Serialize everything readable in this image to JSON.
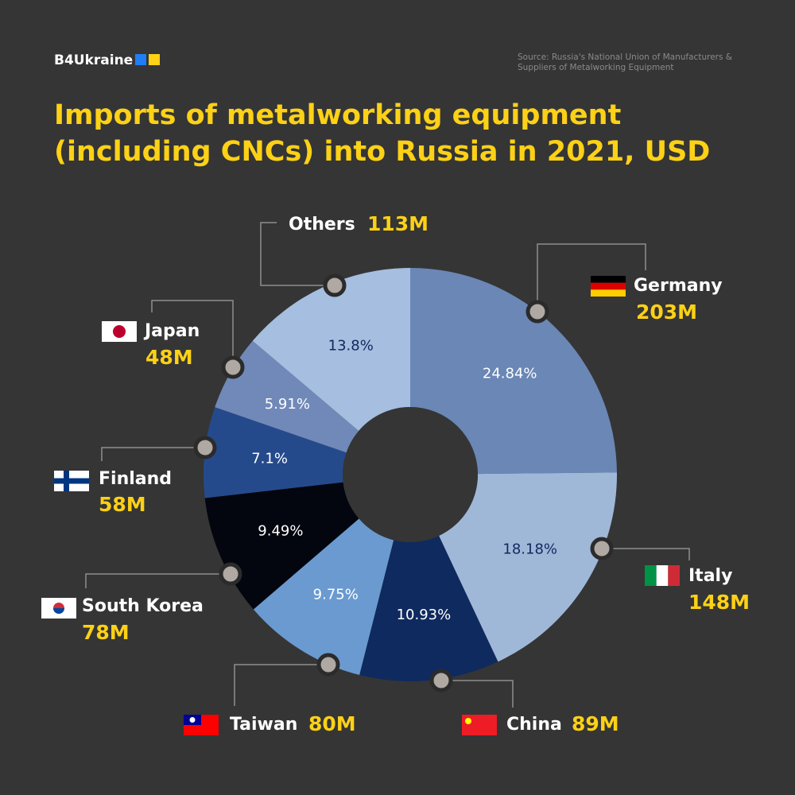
{
  "header": {
    "brand": "B4Ukraine",
    "source": "Source: Russia's National Union of Manufacturers & Suppliers of Metalworking Equipment"
  },
  "chart_data": {
    "type": "pie",
    "title": [
      "Imports of metalworking equipment",
      "(including CNCs) into Russia in 2021, USD"
    ],
    "categories": [
      "Germany",
      "Italy",
      "China",
      "Taiwan",
      "South Korea",
      "Finland",
      "Japan",
      "Others"
    ],
    "values": [
      24.84,
      18.18,
      10.93,
      9.75,
      9.49,
      7.1,
      5.91,
      13.8
    ],
    "value_labels": [
      "24.84%",
      "18.18%",
      "10.93%",
      "9.75%",
      "9.49%",
      "7.1%",
      "5.91%",
      "13.8%"
    ],
    "amounts": [
      203,
      148,
      89,
      80,
      78,
      58,
      48,
      113
    ],
    "amount_labels": [
      "203M",
      "148M",
      "89M",
      "80M",
      "78M",
      "58M",
      "48M",
      "113M"
    ],
    "colors": [
      "#6a87b5",
      "#9fb8d8",
      "#0f2a5e",
      "#6a9ad0",
      "#03060f",
      "#254a8c",
      "#7189b9",
      "#a6bedf"
    ],
    "donut": true
  }
}
